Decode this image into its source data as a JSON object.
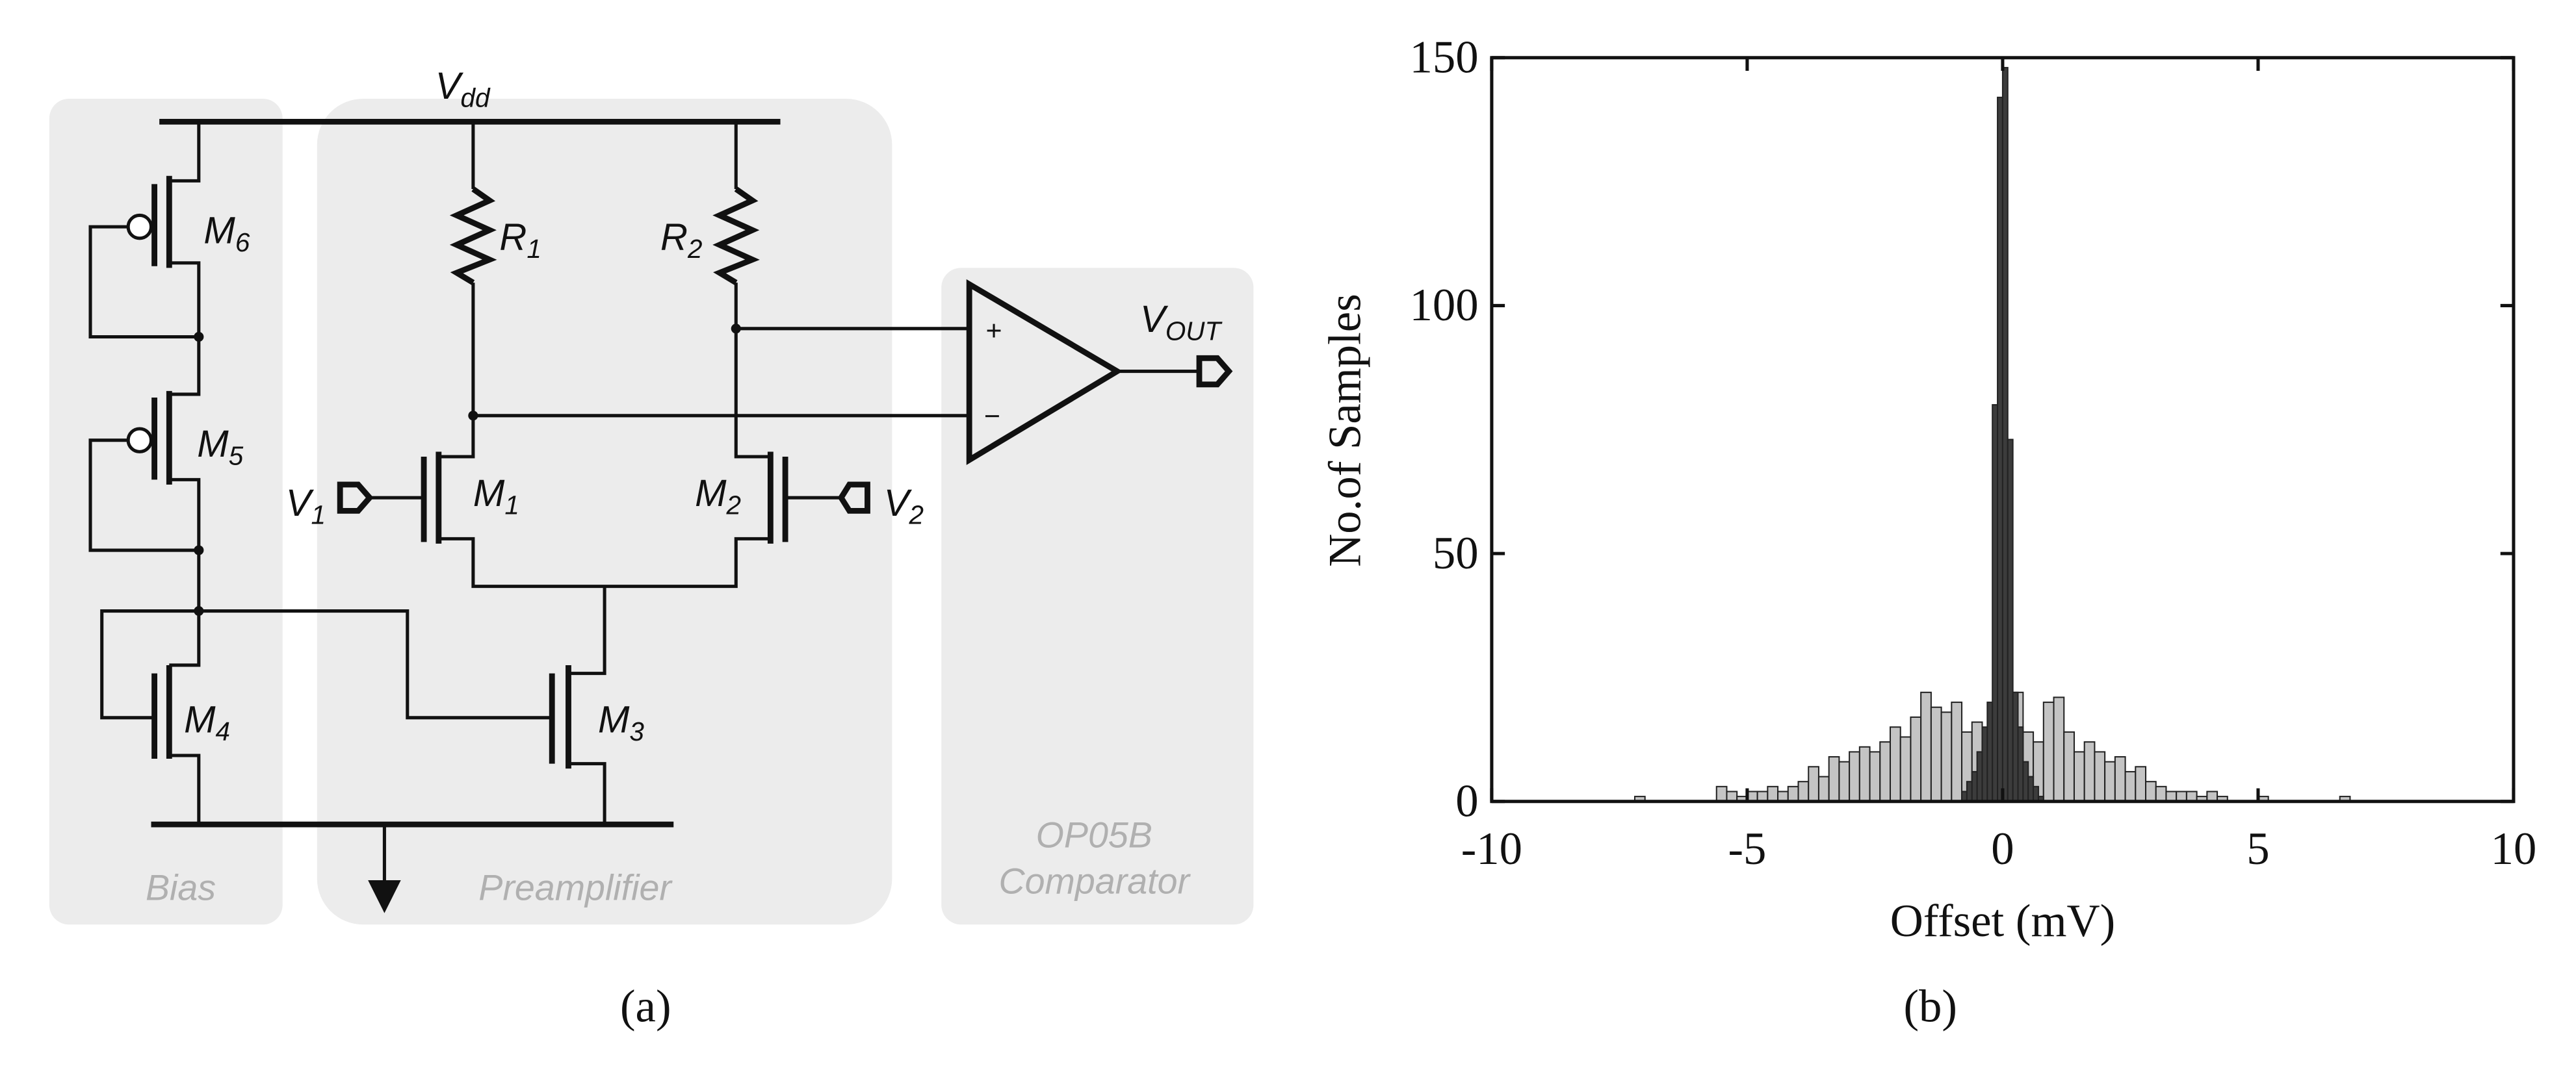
{
  "panel_a": {
    "caption": "(a)",
    "vdd": {
      "main": "V",
      "sub": "dd"
    },
    "r1": {
      "main": "R",
      "sub": "1"
    },
    "r2": {
      "main": "R",
      "sub": "2"
    },
    "m1": {
      "main": "M",
      "sub": "1"
    },
    "m2": {
      "main": "M",
      "sub": "2"
    },
    "m3": {
      "main": "M",
      "sub": "3"
    },
    "m4": {
      "main": "M",
      "sub": "4"
    },
    "m5": {
      "main": "M",
      "sub": "5"
    },
    "m6": {
      "main": "M",
      "sub": "6"
    },
    "v1": {
      "main": "V",
      "sub": "1"
    },
    "v2": {
      "main": "V",
      "sub": "2"
    },
    "vout": {
      "main": "V",
      "sub": "OUT"
    },
    "plus": "+",
    "minus": "−",
    "bias": "Bias",
    "preamplifier": "Preamplifier",
    "comparator": [
      "OP05B",
      "Comparator"
    ]
  },
  "chart_data": {
    "type": "histogram",
    "caption": "(b)",
    "xlabel": "Offset (mV)",
    "ylabel": "No.of Samples",
    "xlim": [
      -10,
      10
    ],
    "ylim": [
      0,
      150
    ],
    "xticks": [
      -10,
      -5,
      0,
      5,
      10
    ],
    "yticks": [
      0,
      50,
      100,
      150
    ],
    "series": [
      {
        "color": "#c4c4c4",
        "bins": [
          -7.4,
          -7.2,
          -7,
          -6.8,
          -6.6,
          -6.4,
          -6.2,
          -6,
          -5.8,
          -5.6,
          -5.4,
          -5.2,
          -5,
          -4.8,
          -4.6,
          -4.4,
          -4.2,
          -4,
          -3.8,
          -3.6,
          -3.4,
          -3.2,
          -3,
          -2.8,
          -2.6,
          -2.4,
          -2.2,
          -2,
          -1.8,
          -1.6,
          -1.4,
          -1.2,
          -1,
          -0.8,
          -0.6,
          -0.4,
          -0.2,
          0,
          0.2,
          0.4,
          0.6,
          0.8,
          1,
          1.2,
          1.4,
          1.6,
          1.8,
          2,
          2.2,
          2.4,
          2.6,
          2.8,
          3,
          3.2,
          3.4,
          3.6,
          3.8,
          4,
          4.2,
          4.4,
          4.6,
          4.8,
          5,
          5.2,
          5.4,
          5.6,
          5.8,
          6,
          6.2,
          6.4,
          6.6,
          6.8
        ],
        "values": [
          0,
          1,
          0,
          0,
          0,
          0,
          0,
          0,
          0,
          3,
          2,
          1,
          2,
          2,
          3,
          2,
          3,
          4,
          7,
          5,
          9,
          8,
          10,
          11,
          10,
          12,
          15,
          13,
          17,
          22,
          19,
          18,
          20,
          14,
          16,
          12,
          14,
          20,
          22,
          14,
          12,
          20,
          21,
          14,
          10,
          12,
          10,
          8,
          9,
          6,
          7,
          4,
          3,
          2,
          2,
          2,
          1,
          2,
          1,
          0,
          0,
          0,
          1,
          0,
          0,
          0,
          0,
          0,
          0,
          0,
          1
        ]
      },
      {
        "color": "#3c3c3c",
        "bins": [
          -0.8,
          -0.7,
          -0.6,
          -0.5,
          -0.4,
          -0.3,
          -0.2,
          -0.1,
          0,
          0.1,
          0.2,
          0.3,
          0.4,
          0.5,
          0.6,
          0.7,
          0.8
        ],
        "values": [
          2,
          4,
          6,
          10,
          15,
          20,
          80,
          142,
          148,
          73,
          22,
          15,
          8,
          5,
          3,
          1
        ]
      }
    ]
  }
}
